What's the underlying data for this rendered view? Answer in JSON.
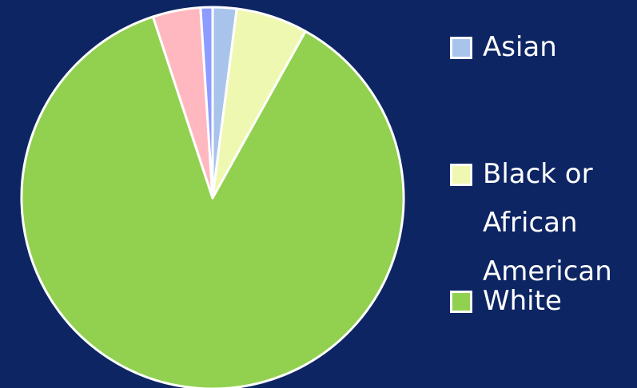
{
  "chart_data": {
    "type": "pie",
    "legend_position": "right",
    "slices": [
      {
        "label": "Asian",
        "value": 2.0,
        "color": "#a9c4ea",
        "in_legend": true
      },
      {
        "label": "Black or African American",
        "value": 6.0,
        "color": "#eff8b0",
        "in_legend": true
      },
      {
        "label": "White",
        "value": 86.0,
        "color": "#92d050",
        "in_legend": true
      },
      {
        "label": "",
        "value": 4.0,
        "color": "#ffb8c0",
        "in_legend": false
      },
      {
        "label": "",
        "value": 1.0,
        "color": "#8d9cff",
        "in_legend": false
      }
    ],
    "legend": [
      {
        "label": "Asian",
        "color": "#a9c4ea"
      },
      {
        "label": "Black or\nAfrican\nAmerican",
        "color": "#eff8b0"
      },
      {
        "label": "White",
        "color": "#92d050"
      }
    ]
  },
  "colors": {
    "background": "#0d2563",
    "slice_border": "#ffffff",
    "text": "#ffffff"
  }
}
